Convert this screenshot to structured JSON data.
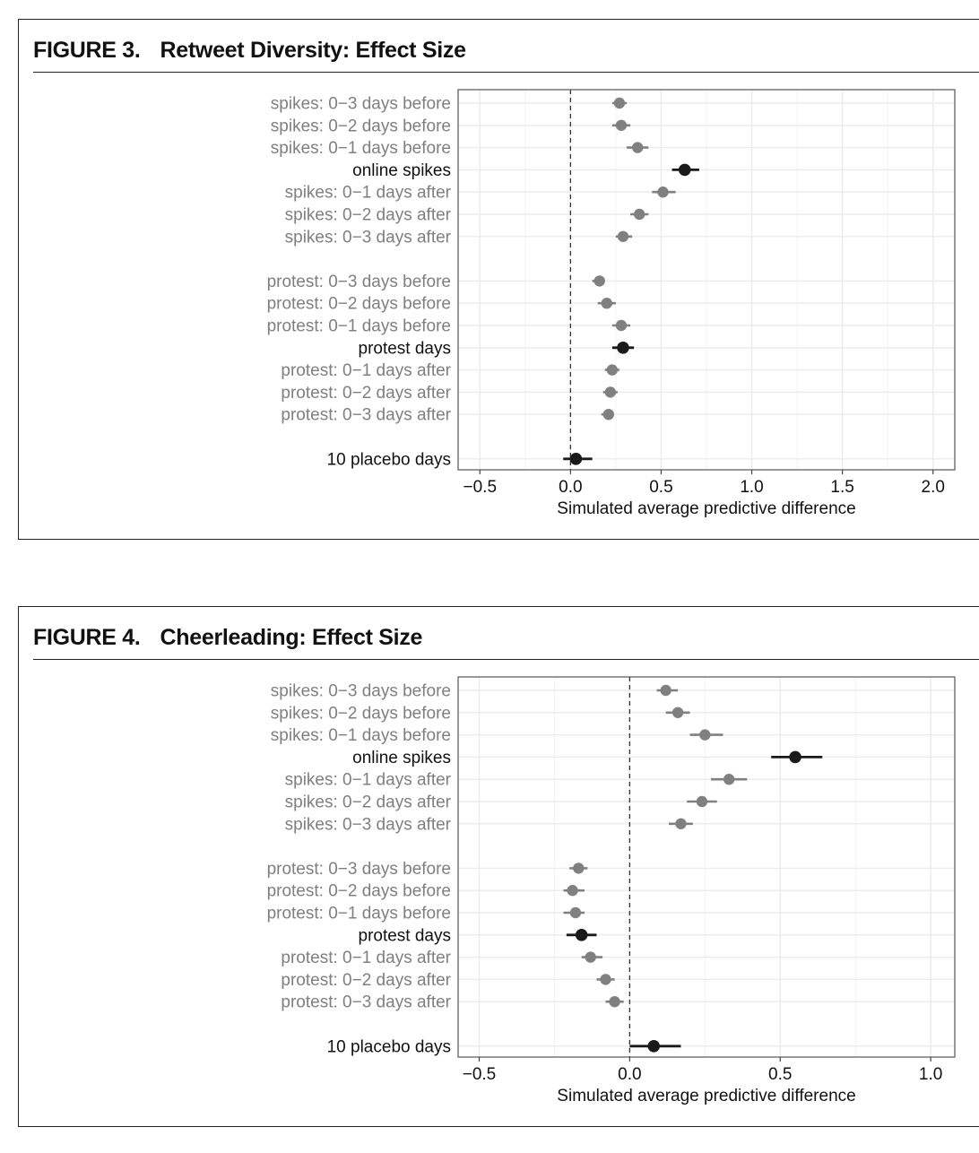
{
  "figures": [
    {
      "number": "FIGURE 3.",
      "title": "Retweet Diversity: Effect Size",
      "chart_data": {
        "type": "scatter",
        "subtype": "point-range (dot with interval)",
        "xlabel": "Simulated average predictive difference",
        "ylabel": "",
        "xlim": [
          -0.62,
          2.12
        ],
        "xticks": [
          -0.5,
          0.0,
          0.5,
          1.0,
          1.5,
          2.0
        ],
        "xtick_labels": [
          "−0.5",
          "0.0",
          "0.5",
          "1.0",
          "1.5",
          "2.0"
        ],
        "reference_line": 0,
        "grid": true,
        "rows": [
          {
            "label": "spikes: 0−3 days before",
            "estimate": 0.27,
            "lower": 0.23,
            "upper": 0.31,
            "emphasis": false
          },
          {
            "label": "spikes: 0−2 days before",
            "estimate": 0.28,
            "lower": 0.23,
            "upper": 0.33,
            "emphasis": false
          },
          {
            "label": "spikes: 0−1 days before",
            "estimate": 0.37,
            "lower": 0.31,
            "upper": 0.43,
            "emphasis": false
          },
          {
            "label": "online spikes",
            "estimate": 0.63,
            "lower": 0.56,
            "upper": 0.71,
            "emphasis": true
          },
          {
            "label": "spikes: 0−1 days after",
            "estimate": 0.51,
            "lower": 0.45,
            "upper": 0.58,
            "emphasis": false
          },
          {
            "label": "spikes: 0−2 days after",
            "estimate": 0.38,
            "lower": 0.33,
            "upper": 0.43,
            "emphasis": false
          },
          {
            "label": "spikes: 0−3 days after",
            "estimate": 0.29,
            "lower": 0.25,
            "upper": 0.34,
            "emphasis": false
          },
          {
            "label": "protest: 0−3 days before",
            "estimate": 0.16,
            "lower": 0.12,
            "upper": 0.19,
            "emphasis": false
          },
          {
            "label": "protest: 0−2 days before",
            "estimate": 0.2,
            "lower": 0.15,
            "upper": 0.25,
            "emphasis": false
          },
          {
            "label": "protest: 0−1 days before",
            "estimate": 0.28,
            "lower": 0.23,
            "upper": 0.33,
            "emphasis": false
          },
          {
            "label": "protest days",
            "estimate": 0.29,
            "lower": 0.23,
            "upper": 0.35,
            "emphasis": true
          },
          {
            "label": "protest: 0−1 days after",
            "estimate": 0.23,
            "lower": 0.19,
            "upper": 0.27,
            "emphasis": false
          },
          {
            "label": "protest: 0−2 days after",
            "estimate": 0.22,
            "lower": 0.18,
            "upper": 0.26,
            "emphasis": false
          },
          {
            "label": "protest: 0−3 days after",
            "estimate": 0.21,
            "lower": 0.17,
            "upper": 0.24,
            "emphasis": false
          },
          {
            "label": "10 placebo days",
            "estimate": 0.03,
            "lower": -0.04,
            "upper": 0.12,
            "emphasis": true
          }
        ],
        "colors": {
          "emphasis": "#1a1a1a",
          "muted": "#808080",
          "muted_label": "#7f7f7f",
          "grid": "#ebebeb"
        }
      }
    },
    {
      "number": "FIGURE 4.",
      "title": "Cheerleading: Effect Size",
      "chart_data": {
        "type": "scatter",
        "subtype": "point-range (dot with interval)",
        "xlabel": "Simulated average predictive difference",
        "ylabel": "",
        "xlim": [
          -0.57,
          1.08
        ],
        "xticks": [
          -0.5,
          0.0,
          0.5,
          1.0
        ],
        "xtick_labels": [
          "−0.5",
          "0.0",
          "0.5",
          "1.0"
        ],
        "reference_line": 0,
        "grid": true,
        "rows": [
          {
            "label": "spikes: 0−3 days before",
            "estimate": 0.12,
            "lower": 0.09,
            "upper": 0.16,
            "emphasis": false
          },
          {
            "label": "spikes: 0−2 days before",
            "estimate": 0.16,
            "lower": 0.12,
            "upper": 0.2,
            "emphasis": false
          },
          {
            "label": "spikes: 0−1 days before",
            "estimate": 0.25,
            "lower": 0.2,
            "upper": 0.31,
            "emphasis": false
          },
          {
            "label": "online spikes",
            "estimate": 0.55,
            "lower": 0.47,
            "upper": 0.64,
            "emphasis": true
          },
          {
            "label": "spikes: 0−1 days after",
            "estimate": 0.33,
            "lower": 0.27,
            "upper": 0.39,
            "emphasis": false
          },
          {
            "label": "spikes: 0−2 days after",
            "estimate": 0.24,
            "lower": 0.19,
            "upper": 0.29,
            "emphasis": false
          },
          {
            "label": "spikes: 0−3 days after",
            "estimate": 0.17,
            "lower": 0.13,
            "upper": 0.21,
            "emphasis": false
          },
          {
            "label": "protest: 0−3 days before",
            "estimate": -0.17,
            "lower": -0.2,
            "upper": -0.14,
            "emphasis": false
          },
          {
            "label": "protest: 0−2 days before",
            "estimate": -0.19,
            "lower": -0.22,
            "upper": -0.15,
            "emphasis": false
          },
          {
            "label": "protest: 0−1 days before",
            "estimate": -0.18,
            "lower": -0.22,
            "upper": -0.15,
            "emphasis": false
          },
          {
            "label": "protest days",
            "estimate": -0.16,
            "lower": -0.21,
            "upper": -0.11,
            "emphasis": true
          },
          {
            "label": "protest: 0−1 days after",
            "estimate": -0.13,
            "lower": -0.16,
            "upper": -0.09,
            "emphasis": false
          },
          {
            "label": "protest: 0−2 days after",
            "estimate": -0.08,
            "lower": -0.11,
            "upper": -0.05,
            "emphasis": false
          },
          {
            "label": "protest: 0−3 days after",
            "estimate": -0.05,
            "lower": -0.08,
            "upper": -0.02,
            "emphasis": false
          },
          {
            "label": "10 placebo days",
            "estimate": 0.08,
            "lower": 0.0,
            "upper": 0.17,
            "emphasis": true
          }
        ],
        "colors": {
          "emphasis": "#1a1a1a",
          "muted": "#808080",
          "muted_label": "#7f7f7f",
          "grid": "#ebebeb"
        }
      }
    }
  ]
}
